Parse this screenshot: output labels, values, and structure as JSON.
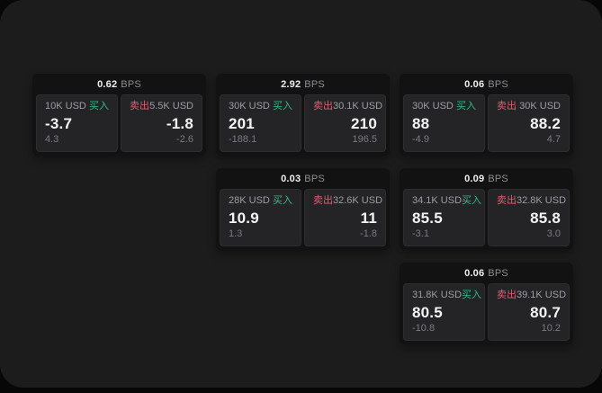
{
  "theme": {
    "outer_background": "#070707",
    "surface": "#1c1c1c",
    "card_background": "#121212",
    "panel_background": "#242427",
    "buy_green": "#2ebd85",
    "sell_red": "#e25c70",
    "text_primary": "#f4f4f6",
    "text_muted": "#8d8d92"
  },
  "cards": [
    {
      "spread": "0.62",
      "unit": "BPS",
      "buy": {
        "amount": "10K USD",
        "side_label": "买入",
        "price": "-3.7",
        "change": "4.3"
      },
      "sell": {
        "side_label": "卖出",
        "amount": "5.5K USD",
        "price": "-1.8",
        "change": "-2.6"
      }
    },
    {
      "spread": "2.92",
      "unit": "BPS",
      "buy": {
        "amount": "30K USD",
        "side_label": "买入",
        "price": "201",
        "change": "-188.1"
      },
      "sell": {
        "side_label": "卖出",
        "amount": "30.1K USD",
        "price": "210",
        "change": "196.5"
      }
    },
    {
      "spread": "0.06",
      "unit": "BPS",
      "buy": {
        "amount": "30K USD",
        "side_label": "买入",
        "price": "88",
        "change": "-4.9"
      },
      "sell": {
        "side_label": "卖出",
        "amount": "30K USD",
        "price": "88.2",
        "change": "4.7"
      }
    },
    {
      "spread": "0.03",
      "unit": "BPS",
      "buy": {
        "amount": "28K USD",
        "side_label": "买入",
        "price": "10.9",
        "change": "1.3"
      },
      "sell": {
        "side_label": "卖出",
        "amount": "32.6K USD",
        "price": "11",
        "change": "-1.8"
      }
    },
    {
      "spread": "0.09",
      "unit": "BPS",
      "buy": {
        "amount": "34.1K USD",
        "side_label": "买入",
        "price": "85.5",
        "change": "-3.1"
      },
      "sell": {
        "side_label": "卖出",
        "amount": "32.8K USD",
        "price": "85.8",
        "change": "3.0"
      }
    },
    {
      "spread": "0.06",
      "unit": "BPS",
      "buy": {
        "amount": "31.8K USD",
        "side_label": "买入",
        "price": "80.5",
        "change": "-10.8"
      },
      "sell": {
        "side_label": "卖出",
        "amount": "39.1K USD",
        "price": "80.7",
        "change": "10.2"
      }
    }
  ]
}
